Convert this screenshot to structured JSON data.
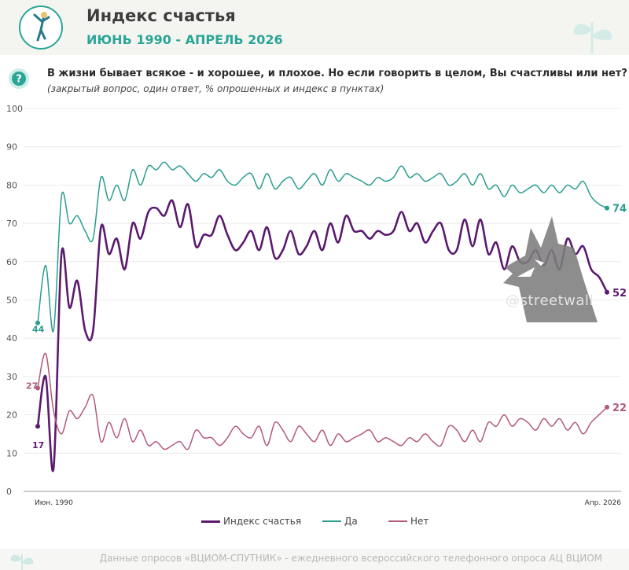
{
  "header": {
    "title": "Индекс счастья",
    "subtitle": "ИЮНЬ 1990 - АПРЕЛЬ 2026",
    "logo_icon": "jumping-person-icon"
  },
  "question": {
    "text": "В жизни бывает всякое - и хорошее, и плохое. Но если говорить в целом, Вы счастливы  или нет?",
    "note": "(закрытый вопрос, один ответ, % опрошенных и индекс в пунктах)",
    "icon": "question-mark-icon"
  },
  "chart_data": {
    "type": "line",
    "title": "",
    "xlabel": "",
    "ylabel": "",
    "ylim": [
      0,
      100
    ],
    "y_ticks": [
      "0",
      "10",
      "20",
      "30",
      "40",
      "50",
      "60",
      "70",
      "80",
      "90",
      "100"
    ],
    "x_start_label": "Июн. 1990",
    "x_end_label": "Апр. 2026",
    "grid": true,
    "legend_position": "bottom",
    "series": [
      {
        "name": "Индекс счастья",
        "color": "#5b1a6e",
        "start_label": "17",
        "end_label": "52",
        "values": [
          17,
          30,
          6,
          62,
          48,
          55,
          42,
          42,
          69,
          62,
          66,
          58,
          70,
          66,
          73,
          74,
          72,
          76,
          69,
          75,
          64,
          67,
          67,
          72,
          67,
          63,
          65,
          68,
          63,
          69,
          61,
          63,
          68,
          62,
          64,
          68,
          63,
          70,
          65,
          72,
          68,
          68,
          66,
          68,
          67,
          68,
          73,
          68,
          70,
          65,
          68,
          70,
          63,
          63,
          71,
          64,
          71,
          62,
          65,
          58,
          64,
          60,
          60,
          63,
          59,
          63,
          58,
          66,
          62,
          64,
          58,
          56,
          52
        ]
      },
      {
        "name": "Да",
        "color": "#2a9d8f",
        "start_label": "44",
        "end_label": "74",
        "values": [
          44,
          59,
          42,
          77,
          70,
          72,
          68,
          66,
          82,
          76,
          80,
          76,
          84,
          80,
          85,
          84,
          86,
          84,
          85,
          83,
          81,
          83,
          82,
          84,
          81,
          80,
          82,
          83,
          79,
          83,
          79,
          81,
          82,
          79,
          81,
          83,
          80,
          84,
          81,
          83,
          82,
          81,
          80,
          82,
          81,
          82,
          85,
          82,
          83,
          81,
          82,
          83,
          80,
          81,
          83,
          80,
          83,
          79,
          80,
          77,
          80,
          78,
          79,
          80,
          78,
          80,
          78,
          80,
          79,
          81,
          77,
          75,
          74
        ]
      },
      {
        "name": "Нет",
        "color": "#b25a7e",
        "start_label": "27",
        "end_label": "22",
        "values": [
          27,
          36,
          21,
          15,
          21,
          19,
          22,
          25,
          13,
          18,
          14,
          19,
          13,
          16,
          12,
          13,
          11,
          12,
          13,
          11,
          16,
          14,
          14,
          12,
          14,
          17,
          15,
          14,
          17,
          12,
          18,
          16,
          13,
          17,
          15,
          13,
          16,
          12,
          15,
          13,
          14,
          15,
          16,
          13,
          14,
          13,
          12,
          14,
          13,
          15,
          13,
          12,
          17,
          16,
          13,
          16,
          13,
          18,
          17,
          20,
          17,
          19,
          18,
          16,
          19,
          17,
          19,
          16,
          18,
          15,
          18,
          20,
          22
        ]
      }
    ]
  },
  "legend": {
    "items": [
      "Индекс счастья",
      "Да",
      "Нет"
    ]
  },
  "watermark": "@streetwall",
  "footer": {
    "text": "Данные опросов «ВЦИОМ-СПУТНИК» - ежедневного всероссийского телефонного опроса АЦ ВЦИОМ",
    "icon": "leaf-icon"
  }
}
